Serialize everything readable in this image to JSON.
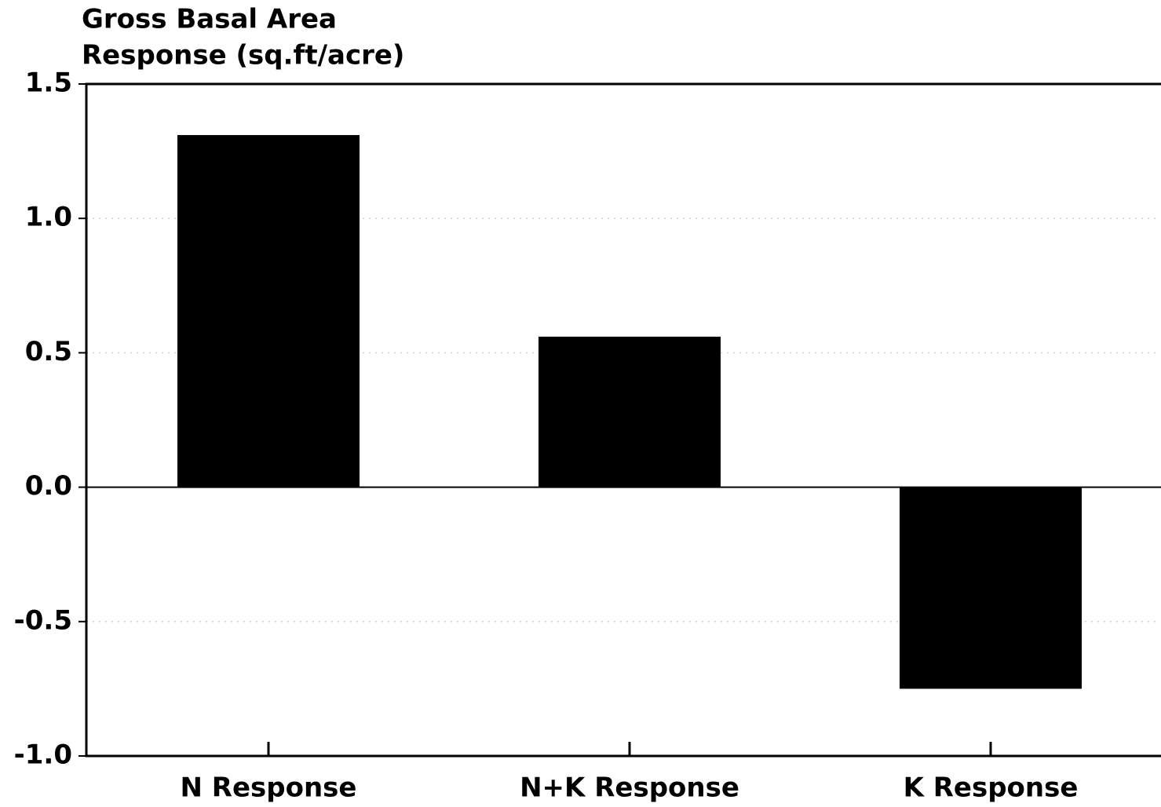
{
  "chart_data": {
    "type": "bar",
    "ylabel": [
      "Gross Basal Area",
      "Response (sq.ft/acre)"
    ],
    "categories": [
      "N Response",
      "N+K Response",
      "K Response"
    ],
    "values": [
      1.31,
      0.56,
      -0.75
    ],
    "color": "#000000",
    "ylim": [
      -1.0,
      1.5
    ],
    "yticks": [
      {
        "value": -1,
        "label": "-1.0"
      },
      -0.5,
      {
        "value": 0,
        "label": "0.0"
      },
      0.5,
      {
        "value": 1,
        "label": "1.0"
      },
      1.5
    ],
    "grid": true
  }
}
